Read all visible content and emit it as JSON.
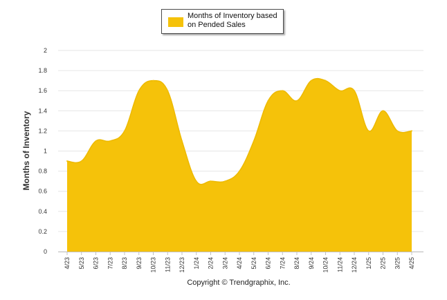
{
  "chart_data": {
    "type": "area",
    "title": "",
    "xlabel": "",
    "ylabel": "Months of Inventory",
    "ylim": [
      0,
      2
    ],
    "yticks": [
      "0",
      "0.2",
      "0.4",
      "0.6",
      "0.8",
      "1",
      "1.2",
      "1.4",
      "1.6",
      "1.8",
      "2"
    ],
    "categories": [
      "4/23",
      "5/23",
      "6/23",
      "7/23",
      "8/23",
      "9/23",
      "10/23",
      "11/23",
      "12/23",
      "1/24",
      "2/24",
      "3/24",
      "4/24",
      "5/24",
      "6/24",
      "7/24",
      "8/24",
      "9/24",
      "10/24",
      "11/24",
      "12/24",
      "1/25",
      "2/25",
      "3/25",
      "4/25"
    ],
    "series": [
      {
        "name": "Months of Inventory based on Pended Sales",
        "color": "#F5C20A",
        "values": [
          0.9,
          0.9,
          1.1,
          1.1,
          1.2,
          1.6,
          1.7,
          1.6,
          1.1,
          0.7,
          0.7,
          0.7,
          0.8,
          1.1,
          1.5,
          1.6,
          1.5,
          1.7,
          1.7,
          1.6,
          1.6,
          1.2,
          1.4,
          1.2,
          1.2
        ]
      }
    ],
    "grid": true,
    "legend": "top-center"
  },
  "legend": {
    "label": "Months of Inventory based on Pended Sales"
  },
  "footer": {
    "copyright": "Copyright © Trendgraphix, Inc."
  }
}
